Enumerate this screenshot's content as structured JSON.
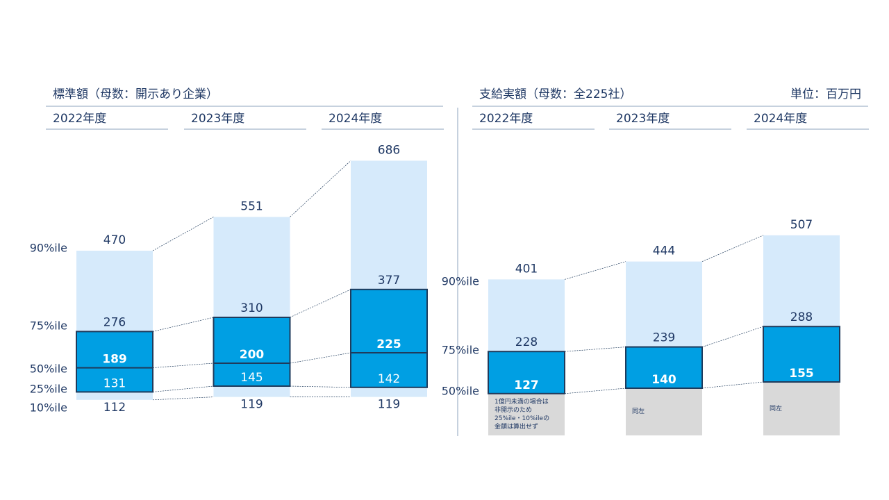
{
  "chart_data": [
    {
      "type": "percentile",
      "title": "標準額（母数：開示あり企業）",
      "categories": [
        "2022年度",
        "2023年度",
        "2024年度"
      ],
      "series": [
        {
          "name": "10%ile",
          "values": [
            112,
            119,
            119
          ]
        },
        {
          "name": "25%ile",
          "values": [
            131,
            145,
            142
          ]
        },
        {
          "name": "50%ile",
          "values": [
            189,
            200,
            225
          ]
        },
        {
          "name": "75%ile",
          "values": [
            276,
            310,
            377
          ]
        },
        {
          "name": "90%ile",
          "values": [
            470,
            551,
            686
          ]
        }
      ],
      "colors": {
        "range": "#d6eafb",
        "box": "#009fe3",
        "edge": "#1f3b5c"
      }
    },
    {
      "type": "percentile",
      "title": "支給実額（母数：全225社）",
      "unit": "単位：百万円",
      "categories": [
        "2022年度",
        "2023年度",
        "2024年度"
      ],
      "series": [
        {
          "name": "50%ile",
          "values": [
            127,
            140,
            155
          ]
        },
        {
          "name": "75%ile",
          "values": [
            228,
            239,
            288
          ]
        },
        {
          "name": "90%ile",
          "values": [
            401,
            444,
            507
          ]
        }
      ],
      "notes": [
        "1億円未満の場合は非開示のため25%ile・10%ileの金額は算出せず",
        "同左",
        "同左"
      ],
      "colors": {
        "range": "#d6eafb",
        "box": "#009fe3",
        "edge": "#1f3b5c",
        "note": "#d9d9d9"
      }
    }
  ]
}
